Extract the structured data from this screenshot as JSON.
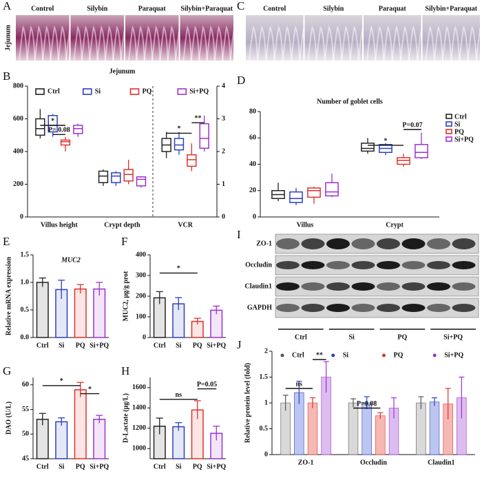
{
  "figure_a": {
    "panel": "A",
    "side_label": "Jejunum",
    "labels": [
      "Control",
      "Silybin",
      "Paraquat",
      "Silybin+Paraquat"
    ]
  },
  "figure_c": {
    "panel": "C",
    "labels": [
      "Control",
      "Silybin",
      "Paraquat",
      "Silybin+Paraquat"
    ]
  },
  "figure_i": {
    "panel": "I",
    "rows": [
      "ZO-1",
      "Occludin",
      "Claudin1",
      "GAPDH"
    ],
    "groups": [
      "Ctrl",
      "Si",
      "PQ",
      "Si+PQ"
    ]
  },
  "chart_data": [
    {
      "type": "box",
      "panel": "B",
      "title": "Jejunum",
      "categories": [
        "Villus height",
        "Crypt depth",
        "VCR"
      ],
      "category_axis": [
        "y",
        "y",
        "y2"
      ],
      "ylim": [
        0,
        800
      ],
      "yticks": [
        0,
        200,
        400,
        600,
        800
      ],
      "y2lim": [
        0,
        4
      ],
      "y2ticks": [
        0,
        1,
        2,
        3,
        4
      ],
      "legend": "top",
      "series": [
        {
          "name": "Ctrl",
          "color": "#222222",
          "boxes": [
            {
              "min": 480,
              "q1": 500,
              "median": 540,
              "q3": 600,
              "max": 660
            },
            {
              "min": 190,
              "q1": 210,
              "median": 250,
              "q3": 280,
              "max": 290
            },
            {
              "min": 1.8,
              "q1": 2.0,
              "median": 2.2,
              "q3": 2.4,
              "max": 2.6
            }
          ]
        },
        {
          "name": "Si",
          "color": "#2b3fbf",
          "boxes": [
            {
              "min": 490,
              "q1": 520,
              "median": 560,
              "q3": 620,
              "max": 630
            },
            {
              "min": 190,
              "q1": 210,
              "median": 250,
              "q3": 270,
              "max": 280
            },
            {
              "min": 1.9,
              "q1": 2.05,
              "median": 2.2,
              "q3": 2.4,
              "max": 2.6
            }
          ]
        },
        {
          "name": "PQ",
          "color": "#e0302a",
          "boxes": [
            {
              "min": 400,
              "q1": 440,
              "median": 460,
              "q3": 470,
              "max": 490
            },
            {
              "min": 200,
              "q1": 220,
              "median": 260,
              "q3": 290,
              "max": 350
            },
            {
              "min": 1.4,
              "q1": 1.55,
              "median": 1.75,
              "q3": 1.9,
              "max": 2.25
            }
          ]
        },
        {
          "name": "Si+PQ",
          "color": "#9b30d0",
          "boxes": [
            {
              "min": 490,
              "q1": 510,
              "median": 540,
              "q3": 560,
              "max": 570
            },
            {
              "min": 180,
              "q1": 190,
              "median": 230,
              "q3": 245,
              "max": 250
            },
            {
              "min": 2.0,
              "q1": 2.1,
              "median": 2.4,
              "q3": 2.85,
              "max": 3.1
            }
          ]
        }
      ],
      "annotations": [
        "*",
        "P= 0.08",
        "*",
        "**"
      ]
    },
    {
      "type": "box",
      "panel": "D",
      "title": "Number of goblet cells",
      "categories": [
        "Villus",
        "Crypt"
      ],
      "ylim": [
        0,
        80
      ],
      "yticks": [
        0,
        20,
        40,
        60,
        80
      ],
      "legend": "right",
      "series": [
        {
          "name": "Ctrl",
          "color": "#222222",
          "boxes": [
            {
              "min": 12,
              "q1": 14,
              "median": 17,
              "q3": 20,
              "max": 26
            },
            {
              "min": 48,
              "q1": 50,
              "median": 52,
              "q3": 56,
              "max": 60
            }
          ]
        },
        {
          "name": "Si",
          "color": "#2b3fbf",
          "boxes": [
            {
              "min": 9,
              "q1": 11,
              "median": 14,
              "q3": 19,
              "max": 22
            },
            {
              "min": 47,
              "q1": 49,
              "median": 52,
              "q3": 55,
              "max": 56
            }
          ]
        },
        {
          "name": "PQ",
          "color": "#e0302a",
          "boxes": [
            {
              "min": 10,
              "q1": 15,
              "median": 20,
              "q3": 22,
              "max": 23
            },
            {
              "min": 38,
              "q1": 40,
              "median": 43,
              "q3": 45,
              "max": 48
            }
          ]
        },
        {
          "name": "Si+PQ",
          "color": "#9b30d0",
          "boxes": [
            {
              "min": 15,
              "q1": 16,
              "median": 19,
              "q3": 26,
              "max": 33
            },
            {
              "min": 44,
              "q1": 45,
              "median": 49,
              "q3": 55,
              "max": 64
            }
          ]
        }
      ],
      "annotations": [
        "*",
        "P=0.07"
      ]
    },
    {
      "type": "bar",
      "panel": "E",
      "title": "MUC2",
      "ylabel": "Relative mRNA expression",
      "categories": [
        "Ctrl",
        "Si",
        "PQ",
        "Si+PQ"
      ],
      "colors": [
        "#222222",
        "#2b3fbf",
        "#e0302a",
        "#9b30d0"
      ],
      "values": [
        1.0,
        0.87,
        0.88,
        0.88
      ],
      "errors": [
        0.08,
        0.17,
        0.08,
        0.12
      ],
      "ylim": [
        0,
        1.5
      ],
      "yticks": [
        {
          "value": 0,
          "label": "0.0"
        },
        0.5,
        {
          "value": 1,
          "label": "1.0"
        },
        1.5
      ]
    },
    {
      "type": "bar",
      "panel": "F",
      "ylabel": "MUC2, μg/g prot",
      "categories": [
        "Ctrl",
        "Si",
        "PQ",
        "Si+PQ"
      ],
      "colors": [
        "#222222",
        "#2b3fbf",
        "#e0302a",
        "#9b30d0"
      ],
      "values": [
        192,
        163,
        78,
        132
      ],
      "errors": [
        30,
        30,
        15,
        20
      ],
      "ylim": [
        0,
        400
      ],
      "yticks": [
        0,
        100,
        200,
        300,
        400
      ],
      "annotations": [
        "*"
      ]
    },
    {
      "type": "bar",
      "panel": "G",
      "ylabel": "DAO (U/L)",
      "categories": [
        "Ctrl",
        "Si",
        "PQ",
        "Si+PQ"
      ],
      "colors": [
        "#222222",
        "#2b3fbf",
        "#e0302a",
        "#9b30d0"
      ],
      "values": [
        53,
        52.5,
        59,
        53
      ],
      "errors": [
        1.2,
        0.8,
        1.5,
        0.8
      ],
      "ylim": [
        45,
        61.5
      ],
      "yticks": [
        45,
        50,
        55,
        60
      ],
      "annotations": [
        "*",
        "*"
      ]
    },
    {
      "type": "bar",
      "panel": "H",
      "ylabel": "D-Lactate (μg/L)",
      "categories": [
        "Ctrl",
        "Si",
        "PQ",
        "Si+PQ"
      ],
      "colors": [
        "#222222",
        "#2b3fbf",
        "#e0302a",
        "#9b30d0"
      ],
      "values": [
        1220,
        1215,
        1380,
        1150
      ],
      "errors": [
        80,
        40,
        90,
        70
      ],
      "ylim": [
        900,
        1700
      ],
      "yticks": [
        1000,
        1200,
        1400,
        1600
      ],
      "annotations": [
        "ns",
        "P=0.05"
      ]
    },
    {
      "type": "grouped_bar",
      "panel": "J",
      "ylabel": "Relative protein level (fold)",
      "categories": [
        "ZO-1",
        "Occludin",
        "Claudin1"
      ],
      "ylim": [
        0,
        2
      ],
      "yticks": [
        0,
        0.5,
        1,
        1.5,
        2
      ],
      "legend": "top",
      "series": [
        {
          "name": "Ctrl",
          "color": "#555555",
          "fill": "#d9d9d9",
          "values": [
            1.0,
            1.0,
            1.0
          ],
          "errors": [
            0.15,
            0.08,
            0.12
          ]
        },
        {
          "name": "Si",
          "color": "#2b3fbf",
          "fill": "#bcc6f0",
          "values": [
            1.2,
            1.0,
            1.02
          ],
          "errors": [
            0.22,
            0.12,
            0.08
          ]
        },
        {
          "name": "PQ",
          "color": "#e0302a",
          "fill": "#f5b8b3",
          "values": [
            1.0,
            0.75,
            0.98
          ],
          "errors": [
            0.1,
            0.06,
            0.3
          ]
        },
        {
          "name": "Si+PQ",
          "color": "#9b30d0",
          "fill": "#ddbdf0",
          "values": [
            1.5,
            0.9,
            1.1
          ],
          "errors": [
            0.3,
            0.2,
            0.4
          ]
        }
      ],
      "annotations": [
        "ns",
        "**",
        "P=0.08"
      ]
    }
  ]
}
